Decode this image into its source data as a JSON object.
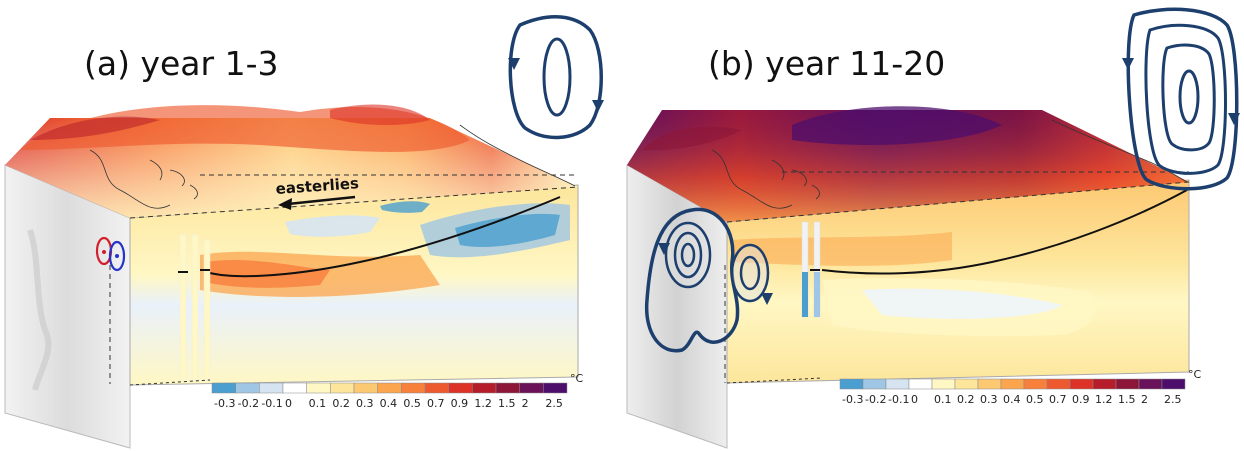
{
  "panels": [
    {
      "id": "a",
      "title": "(a) year 1-3",
      "arrow_label": "easterlies"
    },
    {
      "id": "b",
      "title": "(b) year 11-20"
    }
  ],
  "colorbar": {
    "ticks": [
      "-0.3",
      "-0.2",
      "-0.1",
      "0",
      "0.1",
      "0.2",
      "0.3",
      "0.4",
      "0.5",
      "0.7",
      "0.9",
      "1.2",
      "1.5",
      "2",
      "2.5"
    ],
    "unit": "°C",
    "colors": [
      "#4a9fd0",
      "#9fc6e4",
      "#d6e4f2",
      "#ffffff",
      "#fff7c4",
      "#fde69c",
      "#fdc872",
      "#fba54f",
      "#f7803d",
      "#ee5a2f",
      "#dc3227",
      "#b51d2b",
      "#8c1538",
      "#6a1259",
      "#4d0e6b"
    ]
  },
  "colors": {
    "circulation": "#1d3f6e",
    "thermocline": "#111111",
    "warm_eq": "#f9a64a",
    "cool_eq": "#7fb2dd"
  }
}
